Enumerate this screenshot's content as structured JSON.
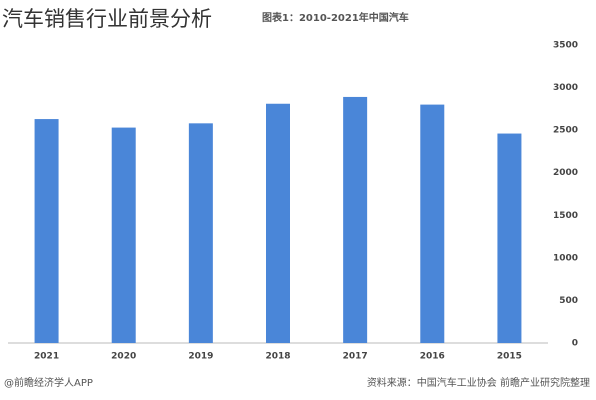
{
  "overlay_title": "汽车销售行业前景分析",
  "chart_data": {
    "type": "bar",
    "title": "图表1：2010-2021年中国汽车",
    "categories": [
      "2021",
      "2020",
      "2019",
      "2018",
      "2017",
      "2016",
      "2015"
    ],
    "values": [
      2630,
      2530,
      2580,
      2810,
      2890,
      2800,
      2460
    ],
    "color": "#4a86d8",
    "ylim": [
      0,
      3500
    ],
    "yticks": [
      0,
      500,
      1000,
      1500,
      2000,
      2500,
      3000,
      3500
    ],
    "grid": false,
    "source": "资料来源：中国汽车工业协会 前瞻产业研究院整理",
    "credit": "@前瞻经济学人APP"
  }
}
